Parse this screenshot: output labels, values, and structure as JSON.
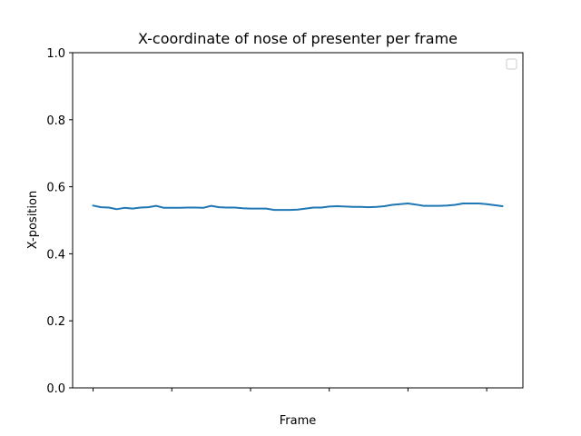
{
  "chart_data": {
    "type": "line",
    "title": "X-coordinate of nose of presenter per frame",
    "xlabel": "Frame",
    "ylabel": "X-position",
    "ylim": [
      0,
      1
    ],
    "xlim": [
      -2.6,
      54.6
    ],
    "yticks": [
      0.0,
      0.2,
      0.4,
      0.6,
      0.8,
      1.0
    ],
    "ytick_labels": [
      "0.0",
      "0.2",
      "0.4",
      "0.6",
      "0.8",
      "1.0"
    ],
    "xticks": [
      0,
      10,
      20,
      30,
      40,
      50
    ],
    "xtick_labels_visible": false,
    "grid": false,
    "legend": "top-right",
    "series": [
      {
        "color": "#1f77b4",
        "x": [
          0,
          1,
          2,
          3,
          4,
          5,
          6,
          7,
          8,
          9,
          10,
          11,
          12,
          13,
          14,
          15,
          16,
          17,
          18,
          19,
          20,
          21,
          22,
          23,
          24,
          25,
          26,
          27,
          28,
          29,
          30,
          31,
          32,
          33,
          34,
          35,
          36,
          37,
          38,
          39,
          40,
          41,
          42,
          43,
          44,
          45,
          46,
          47,
          48,
          49,
          50,
          51,
          52
        ],
        "y": [
          0.544,
          0.539,
          0.538,
          0.533,
          0.537,
          0.535,
          0.538,
          0.539,
          0.543,
          0.537,
          0.537,
          0.537,
          0.538,
          0.538,
          0.537,
          0.543,
          0.539,
          0.538,
          0.538,
          0.536,
          0.535,
          0.535,
          0.535,
          0.531,
          0.531,
          0.531,
          0.532,
          0.535,
          0.538,
          0.538,
          0.541,
          0.542,
          0.541,
          0.54,
          0.54,
          0.539,
          0.54,
          0.542,
          0.546,
          0.548,
          0.55,
          0.547,
          0.543,
          0.543,
          0.543,
          0.544,
          0.546,
          0.55,
          0.55,
          0.55,
          0.548,
          0.545,
          0.542
        ]
      }
    ]
  }
}
